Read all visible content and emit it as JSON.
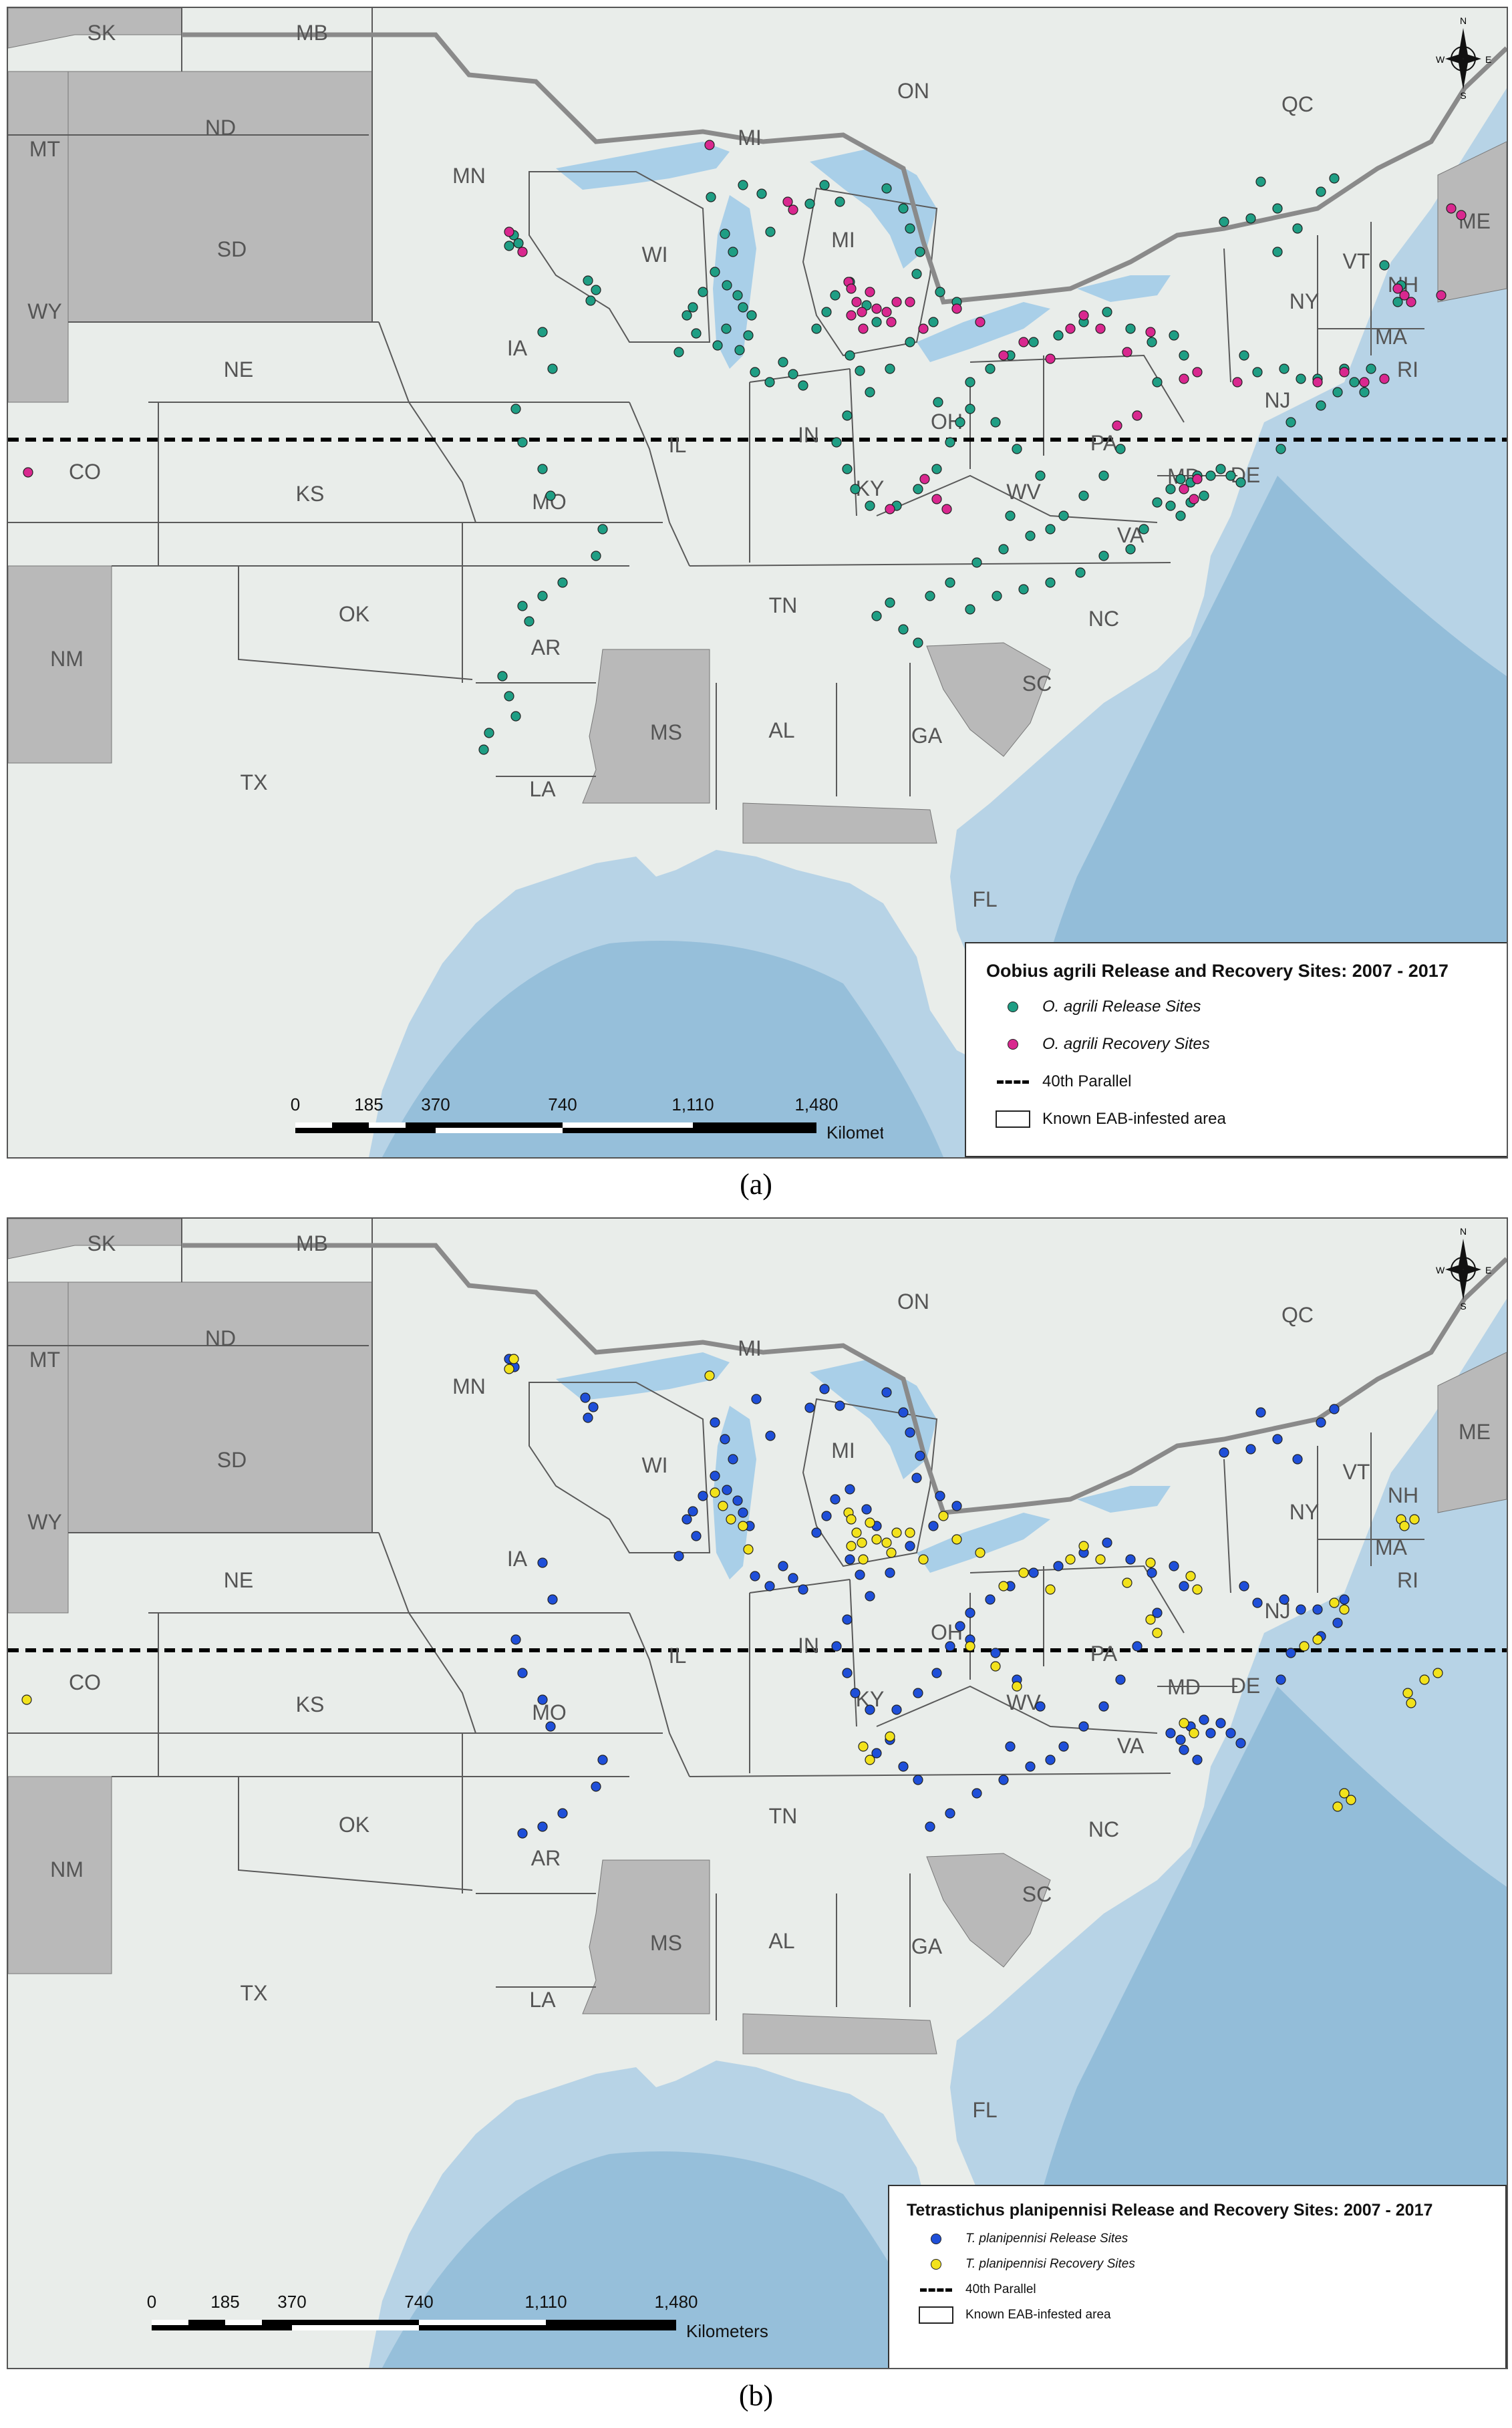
{
  "panels": [
    {
      "id": "a",
      "caption": "(a)",
      "legend_title": "Oobius agrili Release and Recovery Sites: 2007 - 2017",
      "release_label": "O. agrili Release Sites",
      "recovery_label": "O. agrili Recovery Sites",
      "parallel_label": "40th Parallel",
      "area_label": "Known EAB-infested area",
      "release_color": "#1f9e84",
      "recovery_color": "#d9288f",
      "scale_ticks": [
        "0",
        "185",
        "370",
        "740",
        "1,110",
        "1,480"
      ],
      "scale_unit": "Kilometers"
    },
    {
      "id": "b",
      "caption": "(b)",
      "legend_title": "Tetrastichus planipennisi Release and Recovery Sites: 2007 - 2017",
      "release_label": "T. planipennisi Release Sites",
      "recovery_label": "T. planipennisi Recovery Sites",
      "parallel_label": "40th Parallel",
      "area_label": "Known EAB-infested area",
      "release_color": "#1f4fd8",
      "recovery_color": "#f2e21c",
      "scale_ticks": [
        "0",
        "185",
        "370",
        "740",
        "1,110",
        "1,480"
      ],
      "scale_unit": "Kilometers"
    }
  ],
  "compass": {
    "n": "N",
    "s": "S",
    "e": "E",
    "w": "W"
  },
  "state_labels": [
    "SK",
    "MB",
    "ON",
    "QC",
    "MT",
    "ND",
    "SD",
    "WY",
    "NE",
    "CO",
    "KS",
    "OK",
    "NM",
    "TX",
    "MN",
    "IA",
    "MO",
    "AR",
    "LA",
    "WI",
    "IL",
    "MI",
    "MI",
    "IN",
    "OH",
    "KY",
    "TN",
    "MS",
    "AL",
    "GA",
    "FL",
    "SC",
    "NC",
    "VA",
    "WV",
    "PA",
    "NY",
    "VT",
    "NH",
    "ME",
    "MA",
    "RI",
    "NJ",
    "MD",
    "DE"
  ]
}
